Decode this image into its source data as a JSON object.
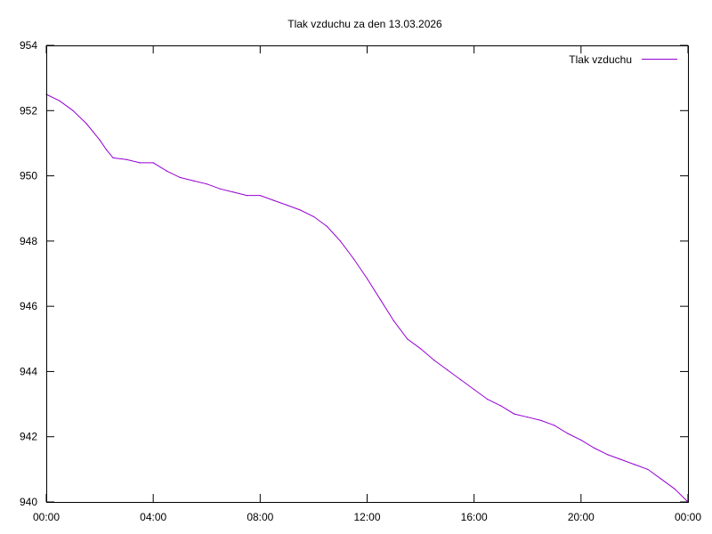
{
  "chart_data": {
    "type": "line",
    "title": "Tlak vzduchu za den 13.03.2026",
    "xlabel": "",
    "ylabel": "",
    "xlim": [
      "00:00",
      "24:00"
    ],
    "ylim": [
      940,
      954
    ],
    "x_ticks": [
      "00:00",
      "04:00",
      "08:00",
      "12:00",
      "16:00",
      "20:00",
      "00:00"
    ],
    "y_ticks": [
      "954",
      "952",
      "950",
      "948",
      "946",
      "944",
      "942",
      "940"
    ],
    "grid": false,
    "legend_position": "top-right",
    "series": [
      {
        "name": "Tlak vzduchu",
        "color": "#9400d3",
        "x": [
          "00:00",
          "00:30",
          "01:00",
          "01:30",
          "02:00",
          "02:15",
          "02:30",
          "03:00",
          "03:30",
          "04:00",
          "04:30",
          "05:00",
          "05:30",
          "06:00",
          "06:30",
          "07:00",
          "07:30",
          "08:00",
          "08:30",
          "09:00",
          "09:30",
          "10:00",
          "10:30",
          "11:00",
          "11:30",
          "12:00",
          "12:30",
          "13:00",
          "13:30",
          "14:00",
          "14:30",
          "15:00",
          "15:30",
          "16:00",
          "16:30",
          "17:00",
          "17:30",
          "18:00",
          "18:30",
          "19:00",
          "19:30",
          "20:00",
          "20:30",
          "21:00",
          "21:30",
          "22:00",
          "22:30",
          "23:00",
          "23:30",
          "24:00"
        ],
        "values": [
          952.5,
          952.3,
          952.0,
          951.6,
          951.1,
          950.8,
          950.55,
          950.5,
          950.4,
          950.4,
          950.15,
          949.95,
          949.85,
          949.75,
          949.6,
          949.5,
          949.4,
          949.4,
          949.25,
          949.1,
          948.95,
          948.75,
          948.45,
          948.0,
          947.45,
          946.85,
          946.2,
          945.55,
          945.0,
          944.7,
          944.35,
          944.05,
          943.75,
          943.45,
          943.15,
          942.95,
          942.7,
          942.6,
          942.5,
          942.35,
          942.1,
          941.9,
          941.65,
          941.45,
          941.3,
          941.15,
          941.0,
          940.7,
          940.4,
          940.0
        ]
      }
    ]
  }
}
